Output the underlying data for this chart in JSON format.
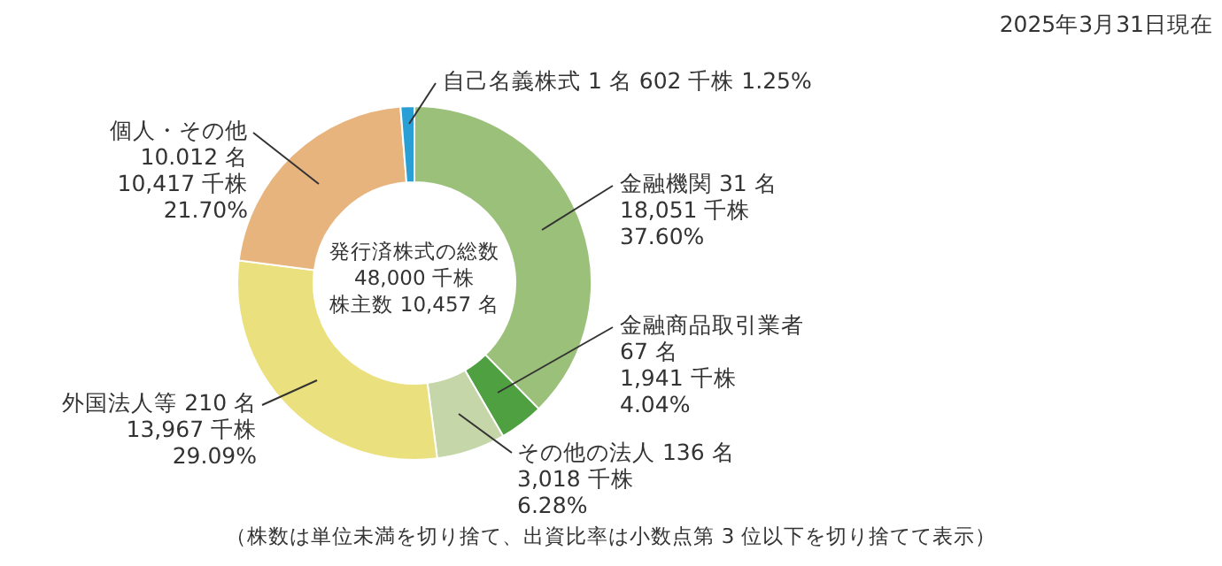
{
  "chart_data": {
    "type": "donut",
    "categories": [
      "金融機関",
      "金融商品取引業者",
      "その他の法人",
      "外国法人等",
      "個人・その他",
      "自己名義株式"
    ],
    "values": [
      18051,
      1941,
      3018,
      13967,
      10417,
      602
    ],
    "colors": [
      "#9bc07a",
      "#4fa040",
      "#c5d6a8",
      "#ebe07e",
      "#e8b47e",
      "#2a9fd6"
    ],
    "value_labels": [
      "31 名\n18,051 千株\n37.60%",
      "\n67 名\n1,941 千株\n4.04%",
      "136 名\n3,018 千株\n6.28%",
      "210 名\n13,967 千株\n29.09%",
      "\n10.012 名\n10,417 千株\n21.70%",
      "1 名 602 千株 1.25%"
    ],
    "annotations": [
      "2025年3月31日現在",
      "発行済株式の総数",
      "48,000 千株",
      "株主数 10,457 名",
      "（株数は単位未満を切り捨て、出資比率は小数点第 3 位以下を切り捨てて表示）"
    ]
  }
}
